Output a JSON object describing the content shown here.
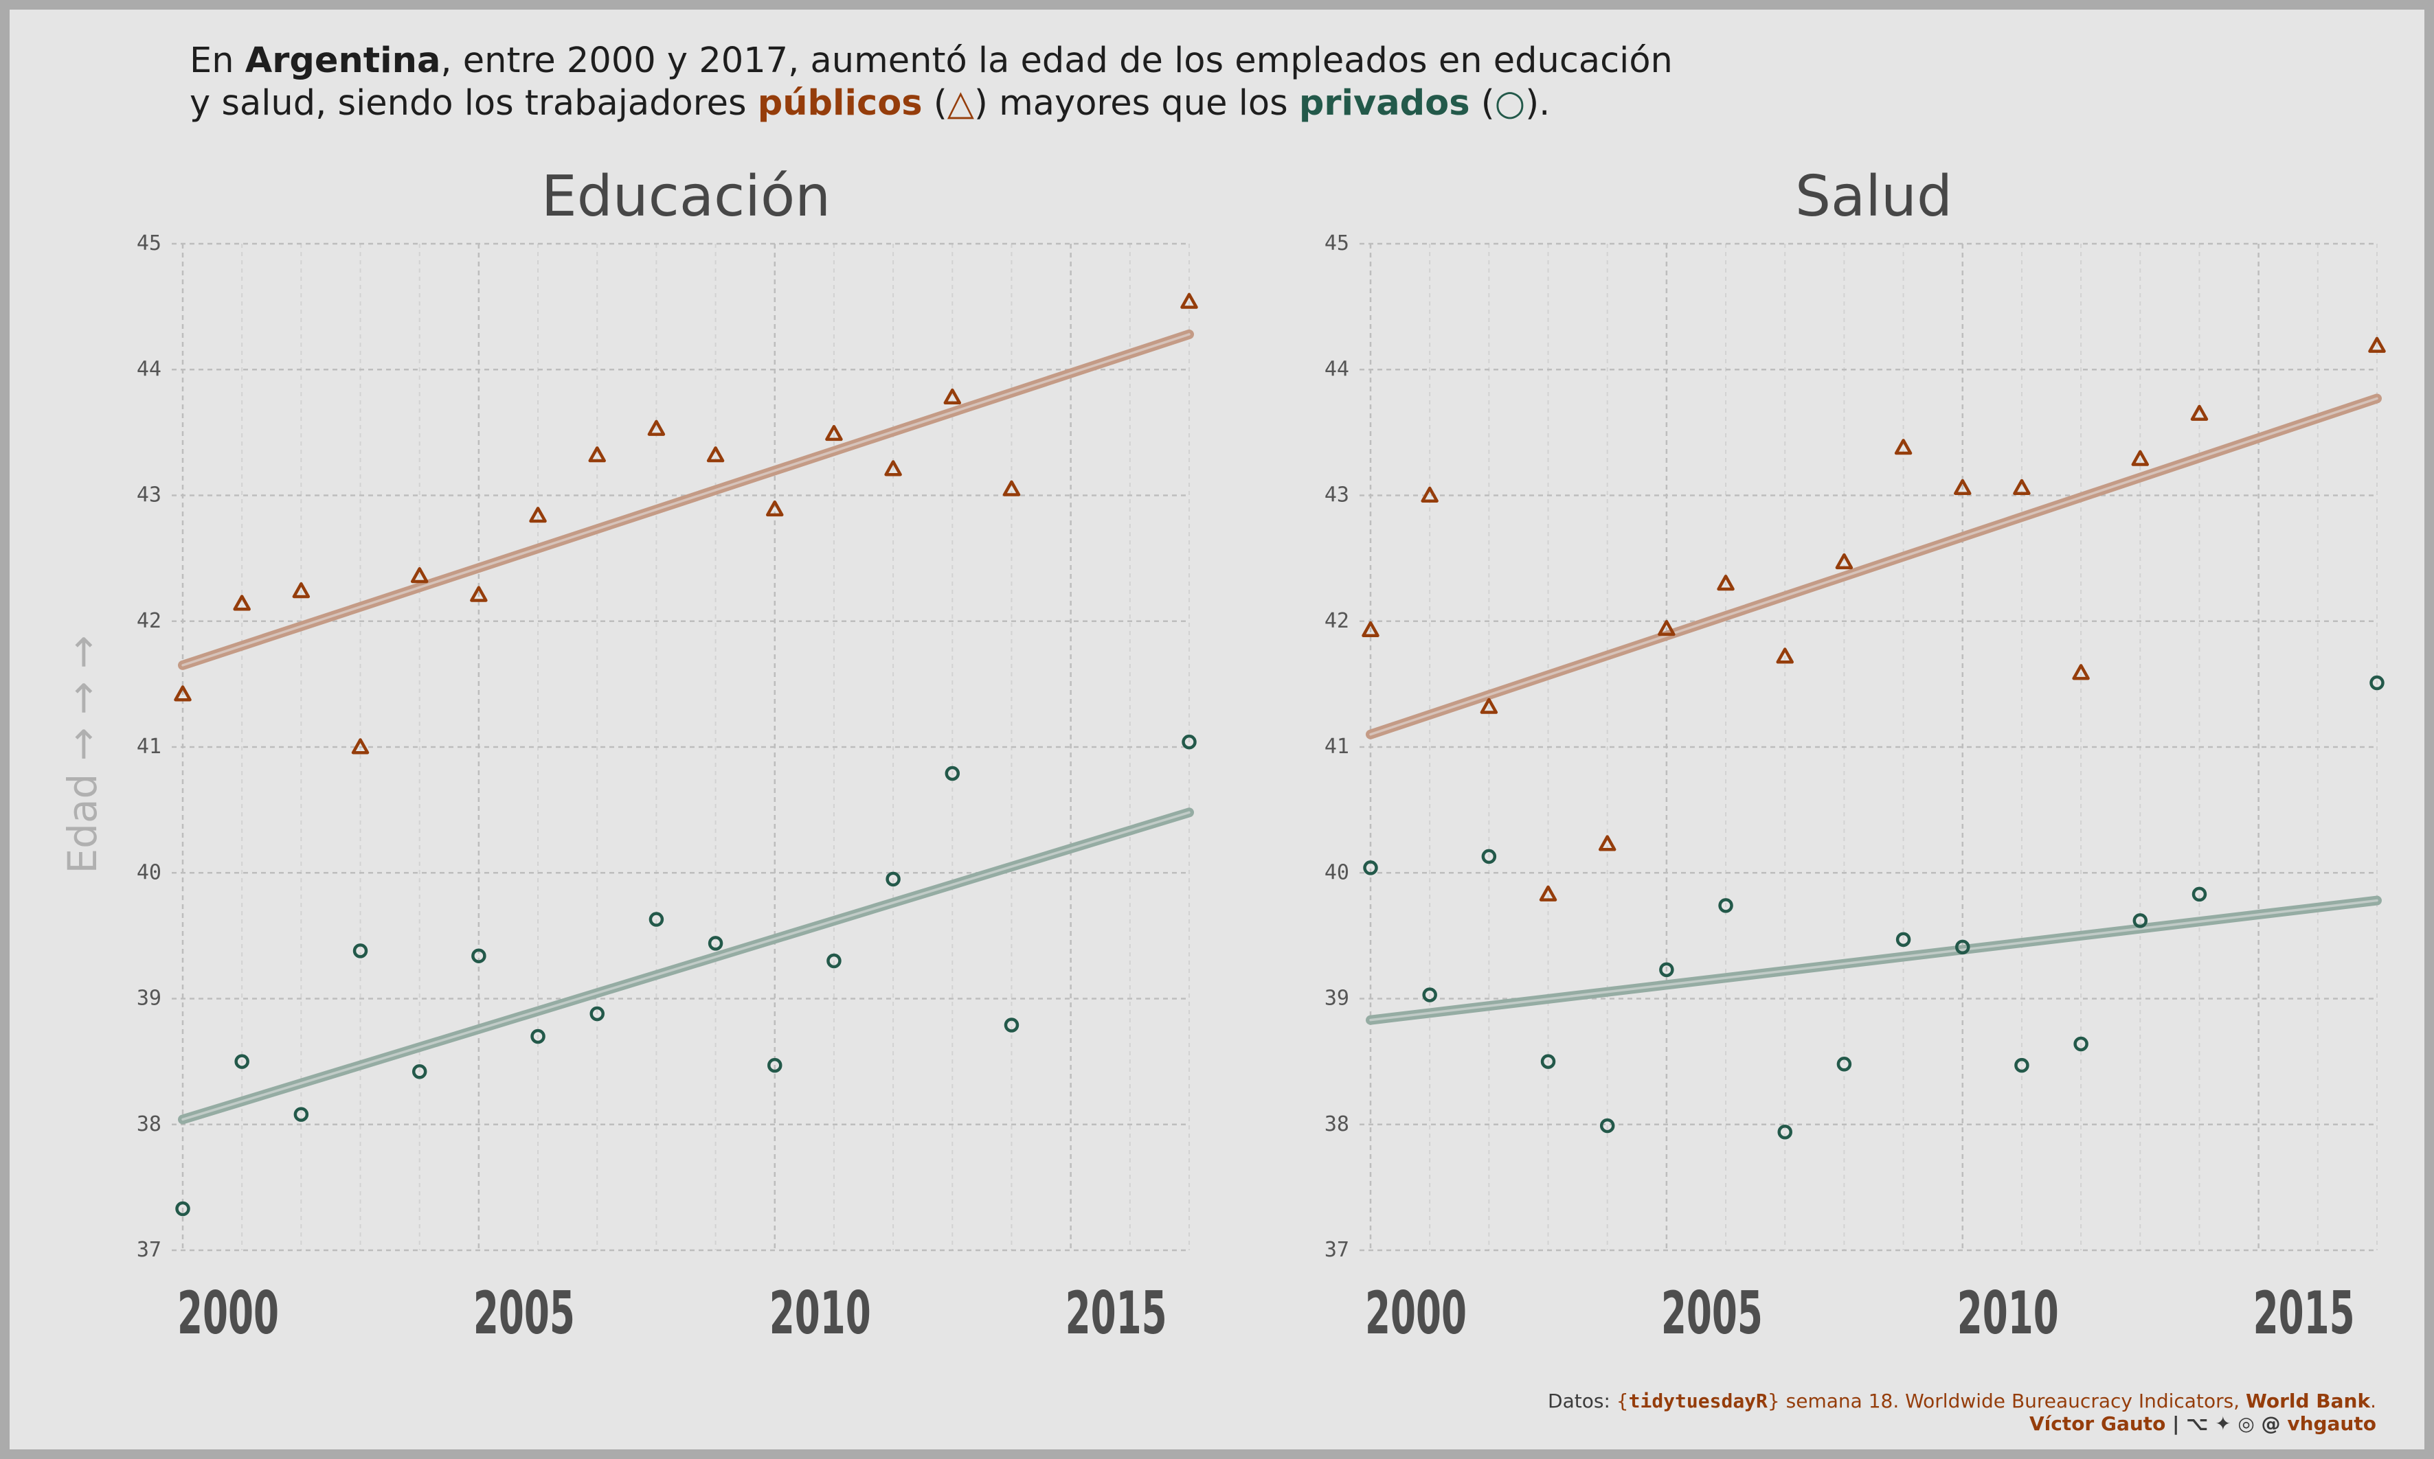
{
  "headline": {
    "line1_a": "En ",
    "country": "Argentina",
    "line1_b": ", entre 2000 y 2017, aumentó la edad de los empleados en educación",
    "line2_a": "y salud, siendo los trabajadores ",
    "public_word": "públicos",
    "paren_open_1": " (",
    "public_symbol": "△",
    "line2_b": ") mayores que los ",
    "private_word": "privados",
    "paren_open_2": " (",
    "private_symbol": "○",
    "line2_c": ")."
  },
  "caption": {
    "line1_a": "Datos: ",
    "brace_open": "{",
    "package": "tidytuesdayR",
    "brace_close": "}",
    "line1_b": " semana 18. Worldwide Bureaucracy Indicators, ",
    "source_bold": "World Bank",
    "line1_c": ".",
    "author": "Víctor Gauto",
    "separator": " | ",
    "social_icons": "⌥ ✦ ◎ @ ",
    "handle": "vhgauto"
  },
  "colors": {
    "background": "#e5e5e5",
    "border": "#ababab",
    "public": "#953d0b",
    "private": "#23594a",
    "public_trend": "#c49b86",
    "private_trend": "#95aca3"
  },
  "chart_data": [
    {
      "type": "scatter",
      "title": "Educación",
      "ylabel": "Edad → → →",
      "xlim": [
        2000,
        2017
      ],
      "ylim": [
        37,
        45
      ],
      "x_ticks": [
        2000,
        2005,
        2010,
        2015
      ],
      "y_ticks": [
        37,
        38,
        39,
        40,
        41,
        42,
        43,
        44,
        45
      ],
      "series": [
        {
          "name": "públicos",
          "marker": "triangle",
          "x": [
            2000,
            2001,
            2002,
            2003,
            2004,
            2005,
            2006,
            2007,
            2008,
            2009,
            2010,
            2011,
            2012,
            2013,
            2014,
            2017
          ],
          "y": [
            41.42,
            42.14,
            42.24,
            41.0,
            42.36,
            42.21,
            42.84,
            43.32,
            43.53,
            43.32,
            42.89,
            43.49,
            43.21,
            43.78,
            43.05,
            44.54
          ],
          "trend": [
            41.65,
            44.28
          ]
        },
        {
          "name": "privados",
          "marker": "circle",
          "x": [
            2000,
            2001,
            2002,
            2003,
            2004,
            2005,
            2006,
            2007,
            2008,
            2009,
            2010,
            2011,
            2012,
            2013,
            2014,
            2017
          ],
          "y": [
            37.33,
            38.5,
            38.08,
            39.38,
            38.42,
            39.34,
            38.7,
            38.88,
            39.63,
            39.44,
            38.47,
            39.3,
            39.95,
            40.79,
            38.79,
            41.04
          ],
          "trend": [
            38.04,
            40.48
          ]
        }
      ],
      "grid": true
    },
    {
      "type": "scatter",
      "title": "Salud",
      "xlim": [
        2000,
        2017
      ],
      "ylim": [
        37,
        45
      ],
      "x_ticks": [
        2000,
        2005,
        2010,
        2015
      ],
      "y_ticks": [
        37,
        38,
        39,
        40,
        41,
        42,
        43,
        44,
        45
      ],
      "series": [
        {
          "name": "públicos",
          "marker": "triangle",
          "x": [
            2000,
            2001,
            2002,
            2003,
            2004,
            2005,
            2006,
            2007,
            2008,
            2009,
            2010,
            2011,
            2012,
            2013,
            2014,
            2017
          ],
          "y": [
            41.93,
            43.0,
            41.32,
            39.83,
            40.23,
            41.94,
            42.3,
            41.72,
            42.47,
            43.38,
            43.06,
            43.06,
            41.59,
            43.29,
            43.65,
            44.19
          ],
          "trend": [
            41.1,
            43.77
          ]
        },
        {
          "name": "privados",
          "marker": "circle",
          "x": [
            2000,
            2001,
            2002,
            2003,
            2004,
            2005,
            2006,
            2007,
            2008,
            2009,
            2010,
            2011,
            2012,
            2013,
            2014,
            2017
          ],
          "y": [
            40.04,
            39.03,
            40.13,
            38.5,
            37.99,
            39.23,
            39.74,
            37.94,
            38.48,
            39.47,
            39.41,
            38.47,
            38.64,
            39.62,
            39.83,
            41.51
          ],
          "trend": [
            38.83,
            39.78
          ]
        }
      ],
      "grid": true
    }
  ]
}
